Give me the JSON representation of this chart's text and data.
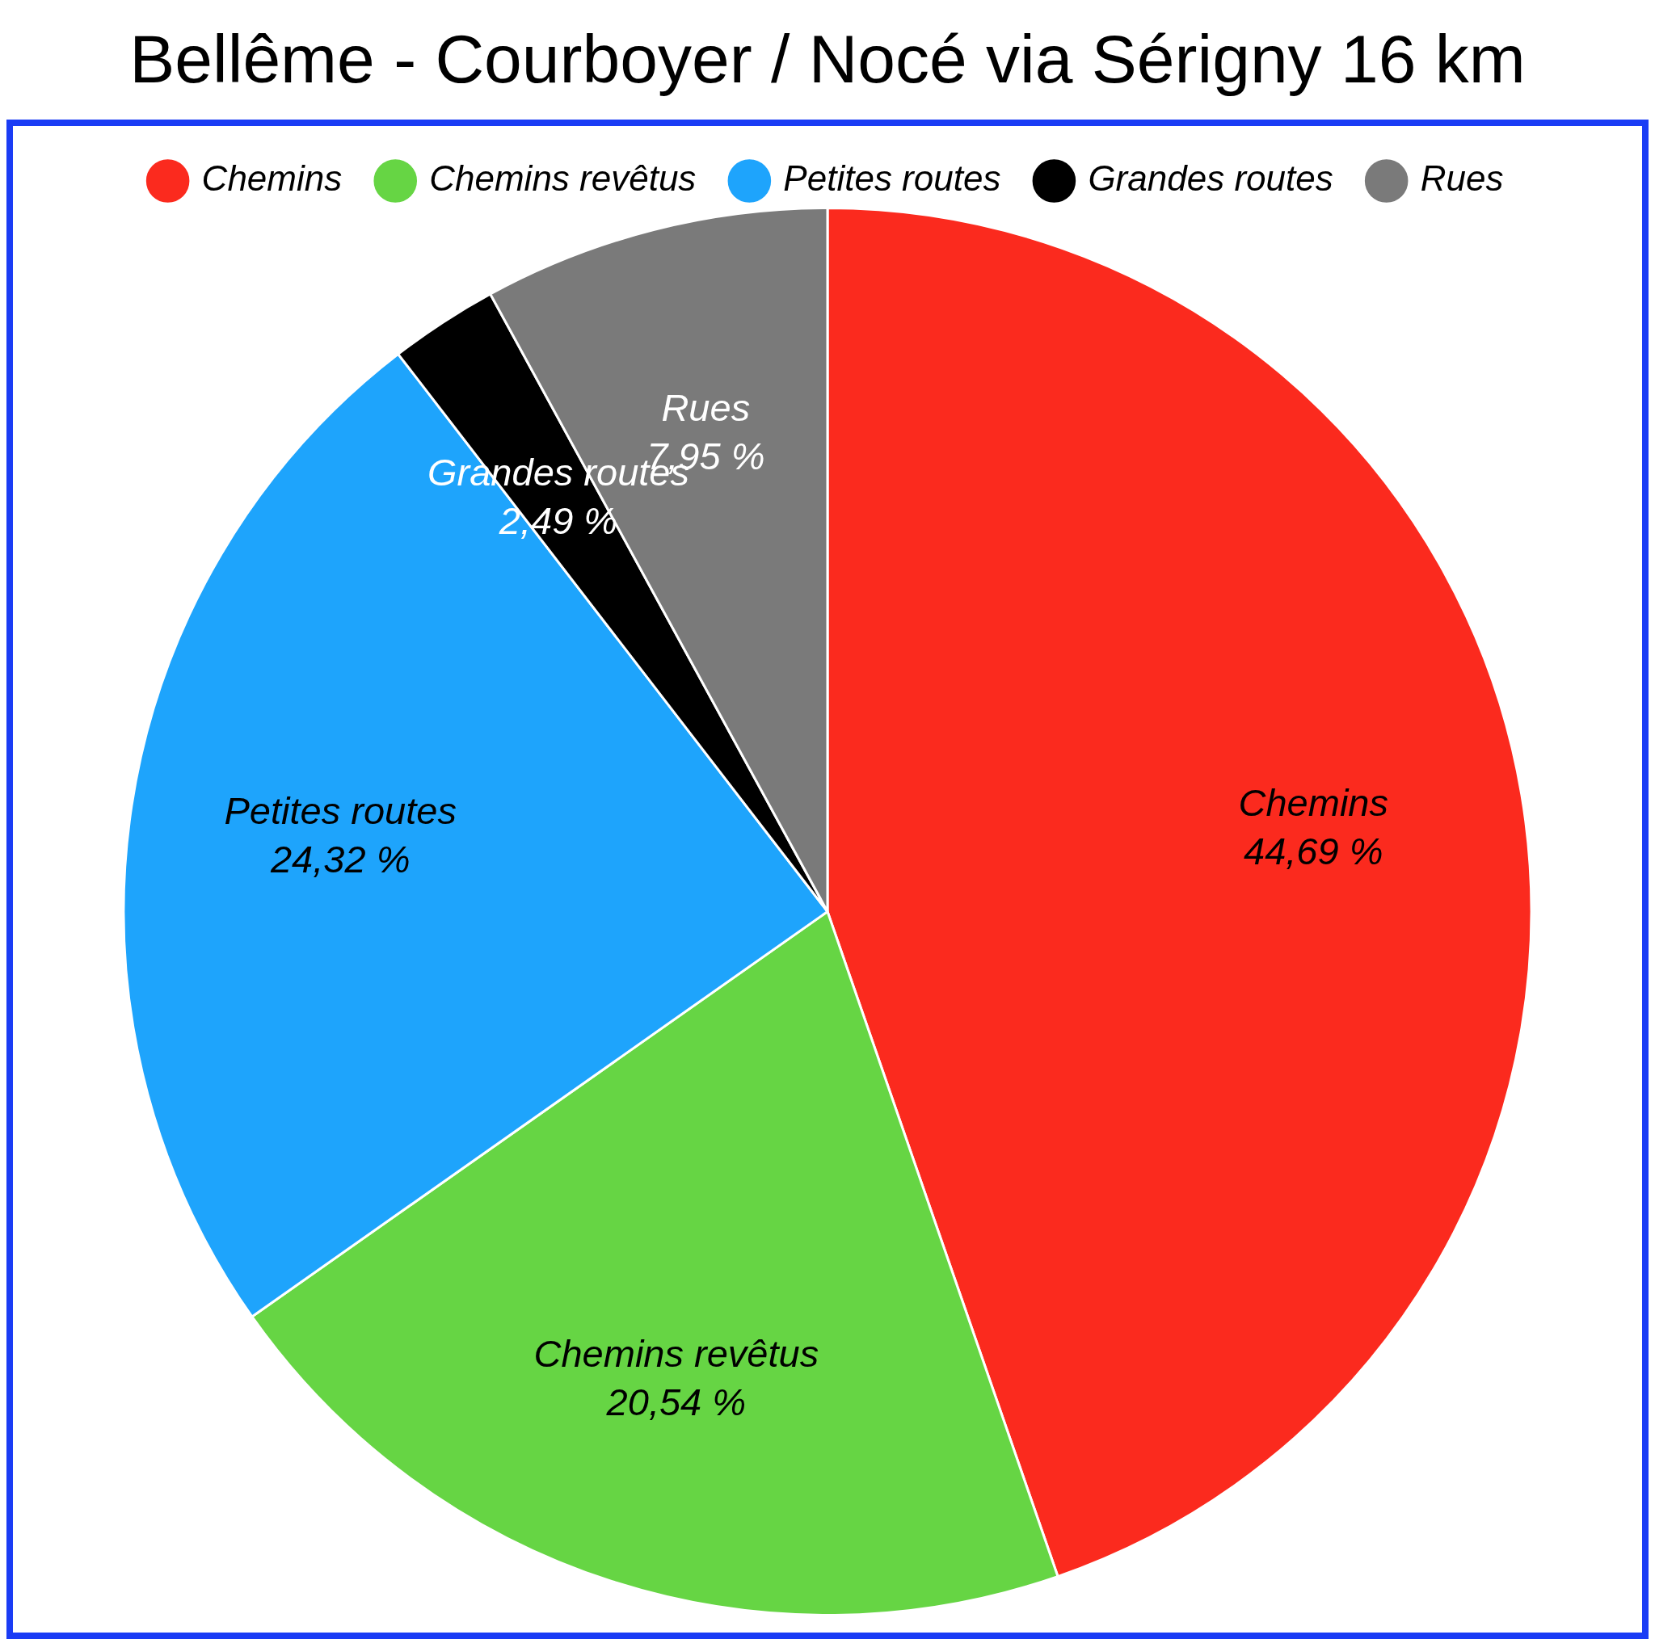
{
  "chart_data": {
    "type": "pie",
    "title": "Bellême - Courboyer / Nocé via Sérigny 16 km",
    "categories": [
      "Chemins",
      "Chemins revêtus",
      "Petites routes",
      "Grandes routes",
      "Rues"
    ],
    "values": [
      44.69,
      20.54,
      24.32,
      2.49,
      7.95
    ],
    "colors": [
      "#fb2a1e",
      "#66d544",
      "#1ea4fc",
      "#000000",
      "#7a7a7a"
    ],
    "value_labels": [
      "44,69 %",
      "20,54 %",
      "24,32 %",
      "2,49 %",
      "7,95 %"
    ],
    "legend": "top"
  }
}
